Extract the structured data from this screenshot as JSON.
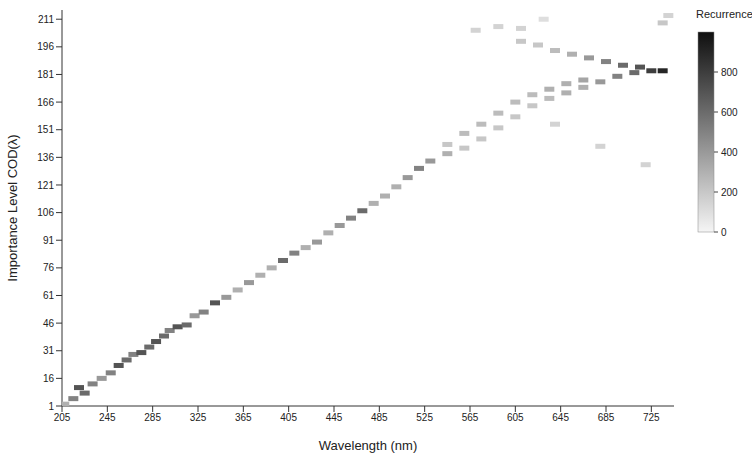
{
  "chart_data": {
    "type": "heatmap",
    "x_label": "Wavelength (nm)",
    "y_label": "Importance Level  COD(λ)",
    "xlim": [
      205,
      745
    ],
    "xticks": [
      205,
      245,
      285,
      325,
      365,
      405,
      445,
      485,
      525,
      565,
      605,
      645,
      685,
      725
    ],
    "ylim": [
      1,
      216
    ],
    "yticks": [
      1,
      16,
      31,
      46,
      61,
      76,
      91,
      106,
      121,
      136,
      151,
      166,
      181,
      196,
      211
    ],
    "cells": [
      [
        207,
        2,
        300
      ],
      [
        215,
        5,
        500
      ],
      [
        220,
        11,
        700
      ],
      [
        225,
        8,
        600
      ],
      [
        232,
        13,
        500
      ],
      [
        240,
        16,
        400
      ],
      [
        248,
        19,
        500
      ],
      [
        255,
        23,
        700
      ],
      [
        262,
        26,
        600
      ],
      [
        268,
        29,
        500
      ],
      [
        275,
        30,
        700
      ],
      [
        282,
        33,
        600
      ],
      [
        288,
        36,
        700
      ],
      [
        295,
        39,
        600
      ],
      [
        300,
        42,
        500
      ],
      [
        307,
        44,
        700
      ],
      [
        315,
        45,
        600
      ],
      [
        322,
        50,
        400
      ],
      [
        330,
        52,
        500
      ],
      [
        340,
        57,
        700
      ],
      [
        350,
        60,
        400
      ],
      [
        360,
        64,
        300
      ],
      [
        370,
        68,
        400
      ],
      [
        380,
        72,
        300
      ],
      [
        390,
        76,
        300
      ],
      [
        400,
        80,
        600
      ],
      [
        410,
        84,
        500
      ],
      [
        420,
        87,
        300
      ],
      [
        430,
        90,
        400
      ],
      [
        440,
        95,
        300
      ],
      [
        450,
        99,
        400
      ],
      [
        460,
        103,
        500
      ],
      [
        470,
        107,
        600
      ],
      [
        480,
        111,
        300
      ],
      [
        490,
        115,
        300
      ],
      [
        500,
        120,
        300
      ],
      [
        510,
        125,
        400
      ],
      [
        520,
        130,
        500
      ],
      [
        530,
        134,
        400
      ],
      [
        545,
        138,
        300
      ],
      [
        545,
        143,
        200
      ],
      [
        560,
        141,
        200
      ],
      [
        560,
        149,
        250
      ],
      [
        575,
        146,
        200
      ],
      [
        575,
        154,
        250
      ],
      [
        590,
        152,
        200
      ],
      [
        590,
        160,
        250
      ],
      [
        605,
        158,
        200
      ],
      [
        605,
        166,
        250
      ],
      [
        620,
        164,
        200
      ],
      [
        620,
        170,
        250
      ],
      [
        635,
        168,
        250
      ],
      [
        635,
        173,
        300
      ],
      [
        650,
        171,
        300
      ],
      [
        650,
        176,
        300
      ],
      [
        665,
        174,
        300
      ],
      [
        665,
        178,
        350
      ],
      [
        680,
        177,
        400
      ],
      [
        695,
        180,
        500
      ],
      [
        710,
        182,
        600
      ],
      [
        725,
        183,
        800
      ],
      [
        735,
        183,
        900
      ],
      [
        610,
        199,
        200
      ],
      [
        625,
        197,
        200
      ],
      [
        640,
        194,
        250
      ],
      [
        655,
        192,
        300
      ],
      [
        670,
        190,
        400
      ],
      [
        685,
        188,
        500
      ],
      [
        700,
        186,
        600
      ],
      [
        715,
        185,
        700
      ],
      [
        570,
        205,
        150
      ],
      [
        590,
        207,
        150
      ],
      [
        610,
        206,
        150
      ],
      [
        630,
        211,
        100
      ],
      [
        735,
        209,
        200
      ],
      [
        740,
        213,
        150
      ],
      [
        640,
        154,
        150
      ],
      [
        680,
        142,
        150
      ],
      [
        720,
        132,
        150
      ]
    ],
    "colorbar": {
      "title": "Recurrence",
      "range": [
        0,
        1000
      ],
      "ticks": [
        0,
        200,
        400,
        600,
        800
      ]
    }
  }
}
